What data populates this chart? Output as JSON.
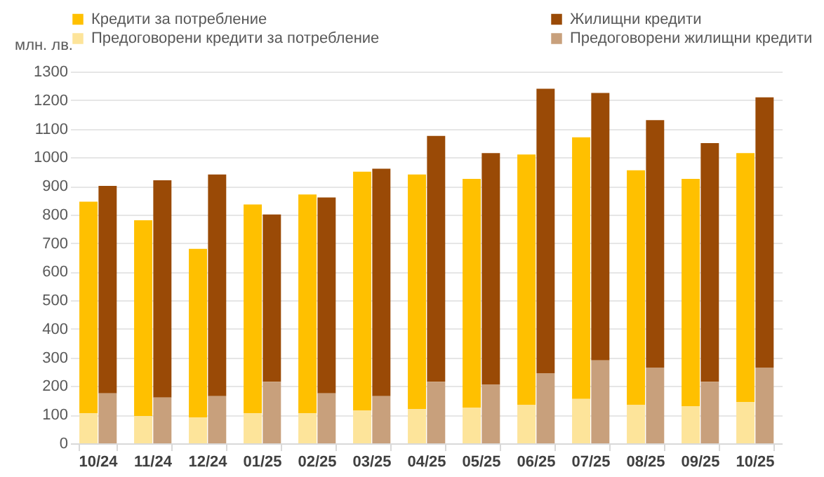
{
  "chart_data": {
    "type": "bar",
    "ylabel": "млн. лв.",
    "legend": "top",
    "grid": "y",
    "categories": [
      "10/24",
      "11/24",
      "12/24",
      "01/25",
      "02/25",
      "03/25",
      "04/25",
      "05/25",
      "06/25",
      "07/25",
      "08/25",
      "09/25",
      "10/25"
    ],
    "ylim": [
      0,
      1300
    ],
    "yticks": [
      0,
      100,
      200,
      300,
      400,
      500,
      600,
      700,
      800,
      900,
      1000,
      1100,
      1200,
      1300
    ],
    "series": [
      {
        "name": "Кредити за потребление",
        "color": "#ffc000",
        "base": [
          105,
          95,
          90,
          105,
          105,
          115,
          120,
          125,
          135,
          155,
          135,
          130,
          145
        ],
        "values": [
          740,
          685,
          590,
          730,
          765,
          835,
          820,
          800,
          875,
          915,
          820,
          795,
          870
        ]
      },
      {
        "name": "Жилищни кредити",
        "color": "#9a4a06",
        "base": [
          175,
          160,
          165,
          215,
          175,
          165,
          215,
          205,
          245,
          290,
          265,
          215,
          265
        ],
        "values": [
          725,
          760,
          775,
          585,
          685,
          795,
          860,
          810,
          995,
          935,
          865,
          835,
          945
        ]
      },
      {
        "name": "Предоговорени кредити за потребление",
        "color": "#fde49a",
        "values": [
          105,
          95,
          90,
          105,
          105,
          115,
          120,
          125,
          135,
          155,
          135,
          130,
          145
        ]
      },
      {
        "name": "Предоговорени жилищни кредити",
        "color": "#c8a07c",
        "values": [
          175,
          160,
          165,
          215,
          175,
          165,
          215,
          205,
          245,
          290,
          265,
          215,
          265
        ]
      }
    ]
  }
}
